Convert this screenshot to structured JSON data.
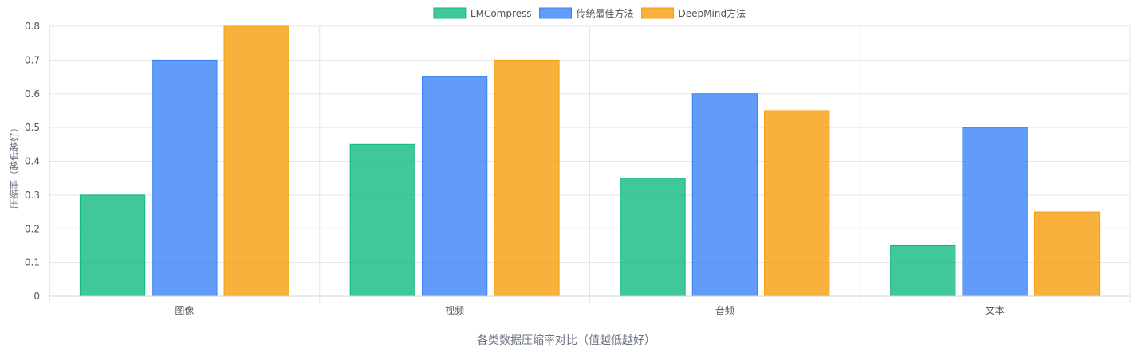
{
  "chart_data": {
    "type": "bar",
    "title": "",
    "xlabel": "各类数据压缩率对比（值越低越好）",
    "ylabel": "压缩率（越低越好）",
    "categories": [
      "图像",
      "视频",
      "音频",
      "文本"
    ],
    "series": [
      {
        "name": "LMCompress",
        "values": [
          0.3,
          0.45,
          0.35,
          0.15
        ],
        "color": "#10b981"
      },
      {
        "name": "传统最佳方法",
        "values": [
          0.7,
          0.65,
          0.6,
          0.5
        ],
        "color": "#3b82f6"
      },
      {
        "name": "DeepMind方法",
        "values": [
          0.8,
          0.7,
          0.55,
          0.25
        ],
        "color": "#f59e0b"
      }
    ],
    "ylim": [
      0,
      0.8
    ],
    "yticks": [
      "0",
      "0.1",
      "0.2",
      "0.3",
      "0.4",
      "0.5",
      "0.6",
      "0.7",
      "0.8"
    ],
    "grid": true,
    "legend_position": "top-center"
  }
}
